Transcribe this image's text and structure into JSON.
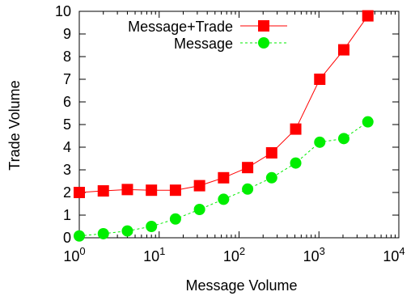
{
  "chart_data": {
    "type": "line",
    "xlabel": "Message Volume",
    "ylabel": "Trade Volume",
    "xscale": "log",
    "xlim": [
      1,
      10000
    ],
    "ylim": [
      0,
      10
    ],
    "x_ticks": [
      {
        "value": 1,
        "base": "10",
        "exp": "0"
      },
      {
        "value": 10,
        "base": "10",
        "exp": "1"
      },
      {
        "value": 100,
        "base": "10",
        "exp": "2"
      },
      {
        "value": 1000,
        "base": "10",
        "exp": "3"
      },
      {
        "value": 10000,
        "base": "10",
        "exp": "4"
      }
    ],
    "y_ticks": [
      "0",
      "1",
      "2",
      "3",
      "4",
      "5",
      "6",
      "7",
      "8",
      "9",
      "10"
    ],
    "grid": false,
    "legend_position": "top-left",
    "x": [
      1,
      2,
      4,
      8,
      16,
      32,
      64,
      128,
      256,
      512,
      1024,
      2048,
      4096
    ],
    "series": [
      {
        "name": "Message+Trade",
        "color": "#ff0000",
        "marker": "square",
        "line": "solid",
        "values": [
          2.0,
          2.07,
          2.13,
          2.1,
          2.1,
          2.3,
          2.65,
          3.1,
          3.75,
          4.8,
          7.0,
          8.3,
          9.8
        ]
      },
      {
        "name": "Message",
        "color": "#00ee00",
        "marker": "circle",
        "line": "dashed",
        "values": [
          0.08,
          0.18,
          0.3,
          0.5,
          0.83,
          1.25,
          1.7,
          2.15,
          2.65,
          3.3,
          4.22,
          4.38,
          5.12
        ]
      }
    ]
  }
}
